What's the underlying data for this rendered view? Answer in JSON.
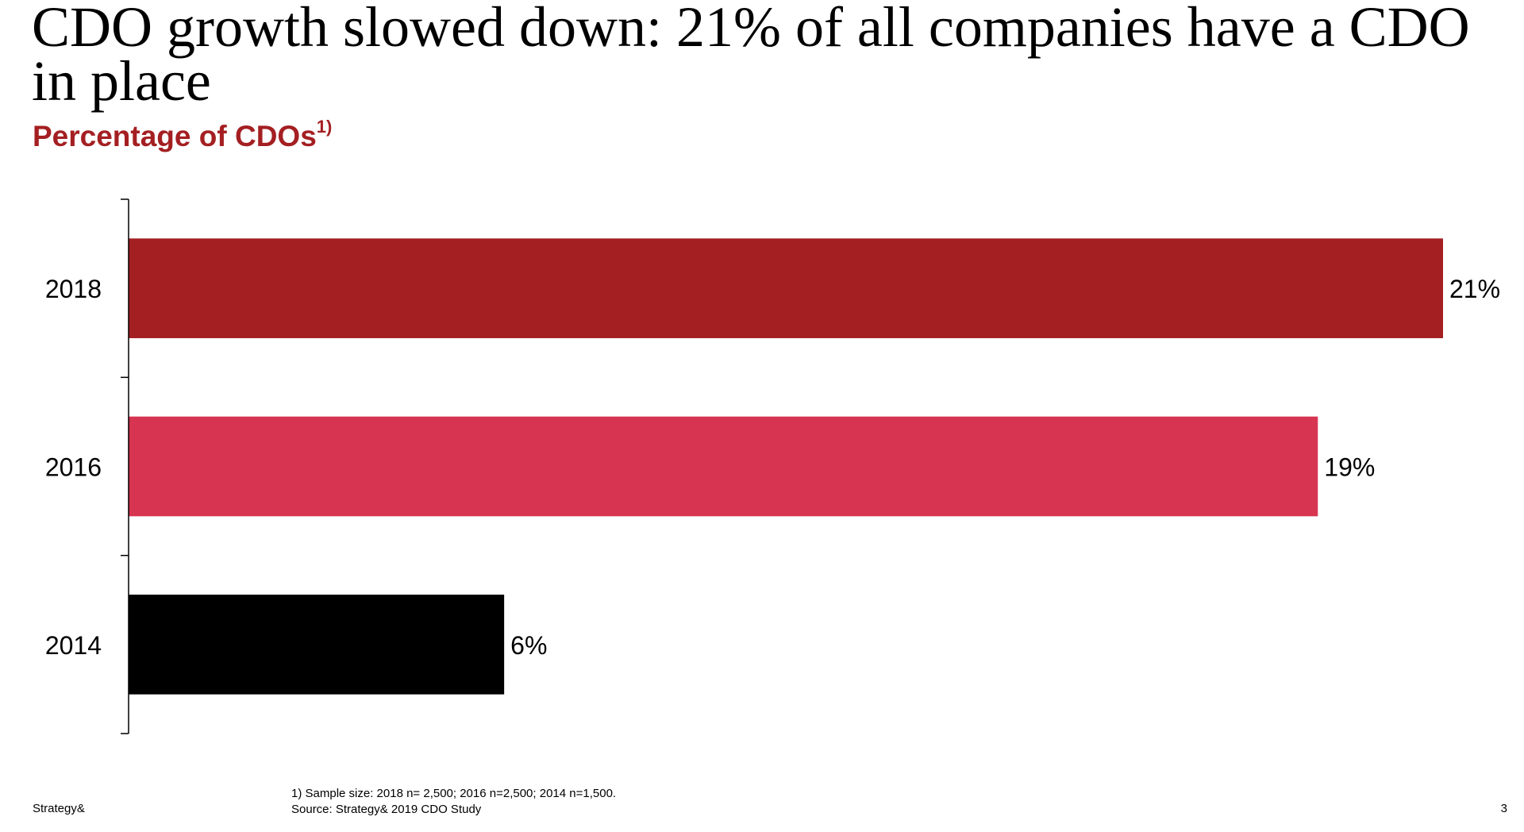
{
  "slide": {
    "title": "CDO growth slowed down: 21% of all companies have a CDO in place",
    "subtitle": "Percentage of CDOs",
    "subtitle_marker": "1)",
    "footnote": "1) Sample size: 2018 n= 2,500; 2016 n=2,500; 2014 n=1,500.",
    "source": "Source: Strategy& 2019 CDO Study",
    "brand": "Strategy&",
    "page_number": "3"
  },
  "chart_data": {
    "type": "bar",
    "orientation": "horizontal",
    "title": "Percentage of CDOs",
    "xlabel": "",
    "ylabel": "",
    "categories": [
      "2018",
      "2016",
      "2014"
    ],
    "values": [
      21,
      19,
      6
    ],
    "data_labels": [
      "21%",
      "19%",
      "6%"
    ],
    "colors": [
      "#a41f22",
      "#d73452",
      "#000000"
    ],
    "xlim": [
      0,
      21
    ],
    "grid": false,
    "legend": "none"
  }
}
